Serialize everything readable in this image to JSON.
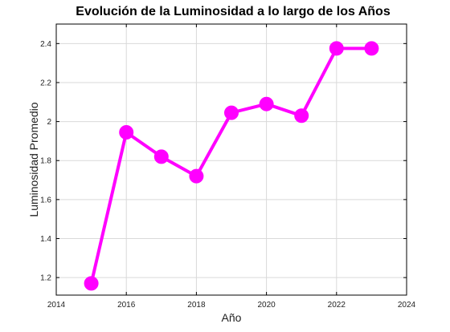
{
  "chart_data": {
    "type": "line",
    "title": "Evolución de la Luminosidad a lo largo de los Años",
    "xlabel": "Año",
    "ylabel": "Luminosidad Promedio",
    "xlim": [
      2014,
      2024
    ],
    "ylim": [
      1.11,
      2.5
    ],
    "xticks": [
      2014,
      2016,
      2018,
      2020,
      2022,
      2024
    ],
    "yticks": [
      1.2,
      1.4,
      1.6,
      1.8,
      2,
      2.2,
      2.4
    ],
    "grid": true,
    "color": "#ff00ff",
    "marker": "circle",
    "series": [
      {
        "x": [
          2015,
          2016,
          2017,
          2018,
          2019,
          2020,
          2021,
          2022,
          2023
        ],
        "values": [
          1.17,
          1.945,
          1.82,
          1.72,
          2.045,
          2.09,
          2.03,
          2.375,
          2.375
        ]
      }
    ]
  }
}
